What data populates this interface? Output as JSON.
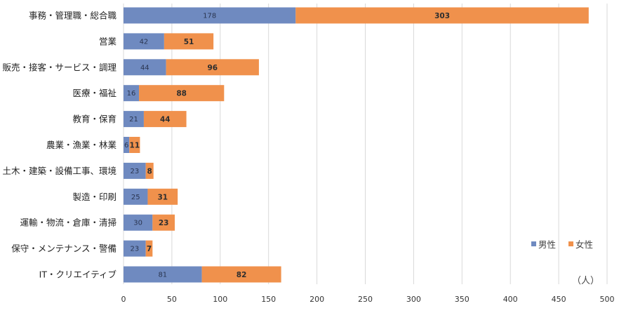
{
  "chart_data": {
    "type": "bar",
    "orientation": "horizontal",
    "stacked": true,
    "categories": [
      "事務・管理職・総合職",
      "営業",
      "販売・接客・サービス・調理",
      "医療・福祉",
      "教育・保育",
      "農業・漁業・林業",
      "土木・建築・設備工事、環境",
      "製造・印刷",
      "運輸・物流・倉庫・清掃",
      "保守・メンテナンス・警備",
      "IT・クリエイティブ"
    ],
    "series": [
      {
        "name": "男性",
        "color": "#6f8ac0",
        "values": [
          178,
          42,
          44,
          16,
          21,
          6,
          23,
          25,
          30,
          23,
          81
        ]
      },
      {
        "name": "女性",
        "color": "#f0914c",
        "values": [
          303,
          51,
          96,
          88,
          44,
          11,
          8,
          31,
          23,
          7,
          82
        ]
      }
    ],
    "xlim": [
      0,
      500
    ],
    "xticks": [
      0,
      50,
      100,
      150,
      200,
      250,
      300,
      350,
      400,
      450,
      500
    ],
    "unit_label": "（人）",
    "legend_position": "bottom-right",
    "grid": "vertical"
  }
}
